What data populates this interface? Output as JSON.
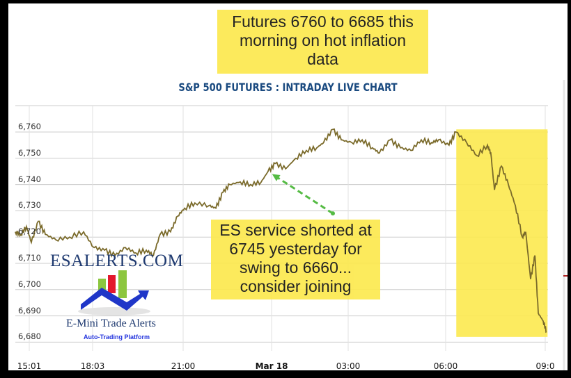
{
  "chart_data": {
    "type": "line",
    "title": "S&P 500 FUTURES : INTRADAY LIVE CHART",
    "xlabel": "",
    "ylabel": "",
    "x_unit": "hours since 15:01 (session time axis)",
    "x_ticks": [
      {
        "label": "15:01",
        "x": 0,
        "bold": false
      },
      {
        "label": "18:03",
        "x": 3.03,
        "bold": false
      },
      {
        "label": "21:00",
        "x": 5.98,
        "bold": false
      },
      {
        "label": "Mar 18",
        "x": 8.98,
        "bold": true
      },
      {
        "label": "03:00",
        "x": 11.98,
        "bold": false
      },
      {
        "label": "06:00",
        "x": 14.98,
        "bold": false
      },
      {
        "label": "09:0",
        "x": 17.98,
        "bold": false
      }
    ],
    "y_ticks": [
      "6,760",
      "6,750",
      "6,740",
      "6,730",
      "6,720",
      "6,710",
      "6,700",
      "6,690",
      "6,680"
    ],
    "y_tick_values": [
      6760,
      6750,
      6740,
      6730,
      6720,
      6710,
      6700,
      6690,
      6680
    ],
    "ylim": [
      6676,
      6770
    ],
    "grid": true,
    "line_color": "#7a6a2a",
    "series": [
      {
        "name": "ES Futures",
        "points": [
          [
            -0.67,
            6722
          ],
          [
            -0.4,
            6721
          ],
          [
            -0.13,
            6724
          ],
          [
            0.1,
            6718
          ],
          [
            0.43,
            6726
          ],
          [
            0.77,
            6721
          ],
          [
            1.27,
            6719
          ],
          [
            1.93,
            6720
          ],
          [
            2.6,
            6722
          ],
          [
            3.08,
            6716
          ],
          [
            3.42,
            6715
          ],
          [
            3.76,
            6713
          ],
          [
            4.1,
            6716
          ],
          [
            4.44,
            6714
          ],
          [
            4.78,
            6715
          ],
          [
            5.01,
            6713
          ],
          [
            5.23,
            6721
          ],
          [
            5.57,
            6722
          ],
          [
            5.8,
            6728
          ],
          [
            6.03,
            6731
          ],
          [
            6.38,
            6733
          ],
          [
            6.86,
            6732
          ],
          [
            7.09,
            6731
          ],
          [
            7.33,
            6737
          ],
          [
            7.56,
            6740
          ],
          [
            7.92,
            6741
          ],
          [
            8.27,
            6740
          ],
          [
            8.63,
            6741
          ],
          [
            8.86,
            6745
          ],
          [
            9.12,
            6748
          ],
          [
            9.53,
            6746
          ],
          [
            9.93,
            6750
          ],
          [
            10.34,
            6753
          ],
          [
            10.75,
            6754
          ],
          [
            11.02,
            6756
          ],
          [
            11.38,
            6761
          ],
          [
            11.71,
            6757
          ],
          [
            12.09,
            6756
          ],
          [
            12.41,
            6757
          ],
          [
            12.73,
            6754
          ],
          [
            12.94,
            6752
          ],
          [
            13.27,
            6757
          ],
          [
            13.59,
            6754
          ],
          [
            13.91,
            6753
          ],
          [
            14.23,
            6757
          ],
          [
            14.55,
            6756
          ],
          [
            14.76,
            6757
          ],
          [
            15.08,
            6755
          ],
          [
            15.29,
            6760
          ],
          [
            15.61,
            6756
          ],
          [
            15.92,
            6751
          ],
          [
            16.24,
            6755
          ],
          [
            16.34,
            6752
          ],
          [
            16.45,
            6738
          ],
          [
            16.66,
            6747
          ],
          [
            16.87,
            6740
          ],
          [
            17.08,
            6732
          ],
          [
            17.29,
            6720
          ],
          [
            17.39,
            6722
          ],
          [
            17.54,
            6704
          ],
          [
            17.67,
            6713
          ],
          [
            17.77,
            6691
          ],
          [
            17.92,
            6688
          ],
          [
            18.02,
            6684
          ]
        ]
      }
    ],
    "highlight_region": {
      "x_range": [
        15.3,
        18.05
      ],
      "y_range": [
        6682,
        6761
      ],
      "color": "#fce94f"
    },
    "arrow": {
      "from": [
        11.38,
        6729
      ],
      "to": [
        9.0,
        6744
      ],
      "color": "#55bb44"
    },
    "annotations": [
      {
        "id": "top",
        "text_lines": [
          "Futures 6760 to 6685 this",
          "morning on hot inflation",
          "data"
        ]
      },
      {
        "id": "mid",
        "text_lines": [
          "ES service shorted at",
          "6745 yesterday for",
          "swing to 6660...",
          "consider joining"
        ]
      }
    ]
  },
  "logo": {
    "name": "ESALERTS.COM",
    "tagline": "E-Mini Trade Alerts",
    "subtagline": "Auto-Trading Platform"
  }
}
